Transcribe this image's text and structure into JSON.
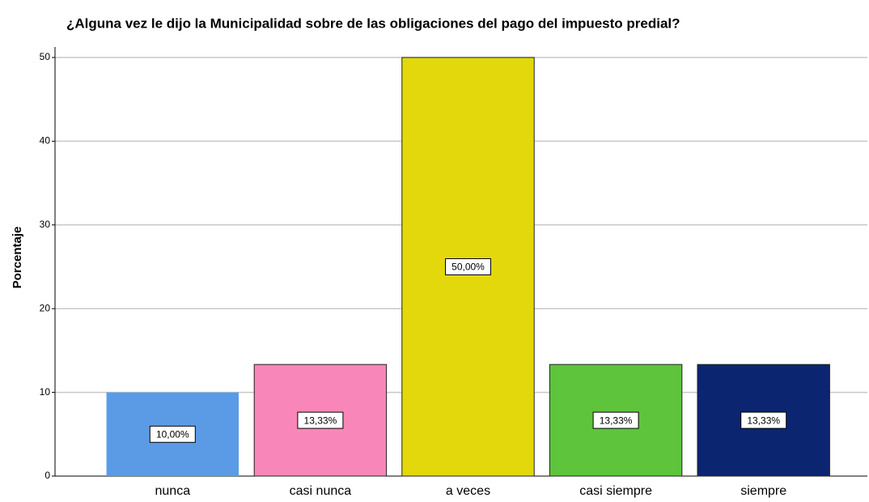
{
  "chart_data": {
    "type": "bar",
    "title": "¿Alguna vez le dijo la Municipalidad sobre de las obligaciones del pago del impuesto predial?",
    "y_label": "Porcentaje",
    "categories": [
      "nunca",
      "casi nunca",
      "a veces",
      "casi siempre",
      "siempre"
    ],
    "values": [
      10,
      13.33,
      50,
      13.33,
      13.33
    ],
    "value_labels": [
      "10,00%",
      "13,33%",
      "50,00%",
      "13,33%",
      "13,33%"
    ],
    "colors": [
      "#5b9be6",
      "#f986b8",
      "#e2d80c",
      "#5ec43c",
      "#0b2570"
    ],
    "ylim": [
      0,
      50
    ],
    "yticks": [
      0,
      10,
      20,
      30,
      40,
      50
    ],
    "grid": true
  }
}
